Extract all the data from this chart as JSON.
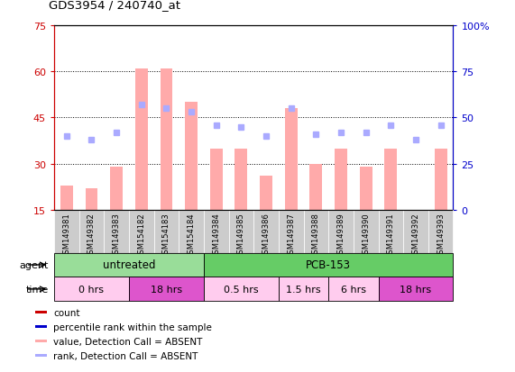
{
  "title": "GDS3954 / 240740_at",
  "samples": [
    "GSM149381",
    "GSM149382",
    "GSM149383",
    "GSM154182",
    "GSM154183",
    "GSM154184",
    "GSM149384",
    "GSM149385",
    "GSM149386",
    "GSM149387",
    "GSM149388",
    "GSM149389",
    "GSM149390",
    "GSM149391",
    "GSM149392",
    "GSM149393"
  ],
  "bar_values": [
    23,
    22,
    29,
    61,
    61,
    50,
    35,
    35,
    26,
    48,
    30,
    35,
    29,
    35,
    15,
    35
  ],
  "rank_values": [
    40,
    38,
    42,
    57,
    55,
    53,
    46,
    45,
    40,
    55,
    41,
    42,
    42,
    46,
    38,
    46
  ],
  "bar_color": "#ffaaaa",
  "rank_color": "#aaaaff",
  "bar_bottom": 15,
  "ylim_left": [
    15,
    75
  ],
  "ylim_right": [
    0,
    100
  ],
  "yticks_left": [
    15,
    30,
    45,
    60,
    75
  ],
  "yticks_right": [
    0,
    25,
    50,
    75,
    100
  ],
  "ytick_labels_left": [
    "15",
    "30",
    "45",
    "60",
    "75"
  ],
  "ytick_labels_right": [
    "0",
    "25",
    "50",
    "75",
    "100%"
  ],
  "agent_groups": [
    {
      "label": "untreated",
      "start": 0,
      "end": 6,
      "color": "#99dd99"
    },
    {
      "label": "PCB-153",
      "start": 6,
      "end": 16,
      "color": "#66cc66"
    }
  ],
  "time_groups": [
    {
      "label": "0 hrs",
      "start": 0,
      "end": 3,
      "color": "#ffccee"
    },
    {
      "label": "18 hrs",
      "start": 3,
      "end": 6,
      "color": "#dd55cc"
    },
    {
      "label": "0.5 hrs",
      "start": 6,
      "end": 9,
      "color": "#ffccee"
    },
    {
      "label": "1.5 hrs",
      "start": 9,
      "end": 11,
      "color": "#ffccee"
    },
    {
      "label": "6 hrs",
      "start": 11,
      "end": 13,
      "color": "#ffccee"
    },
    {
      "label": "18 hrs",
      "start": 13,
      "end": 16,
      "color": "#dd55cc"
    }
  ],
  "legend_colors": [
    "#cc0000",
    "#0000cc",
    "#ffaaaa",
    "#aaaaff"
  ],
  "legend_labels": [
    "count",
    "percentile rank within the sample",
    "value, Detection Call = ABSENT",
    "rank, Detection Call = ABSENT"
  ],
  "left_axis_color": "#cc0000",
  "right_axis_color": "#0000cc",
  "background_color": "#ffffff",
  "sample_box_color": "#cccccc",
  "sample_box_edge": "#aaaaaa"
}
